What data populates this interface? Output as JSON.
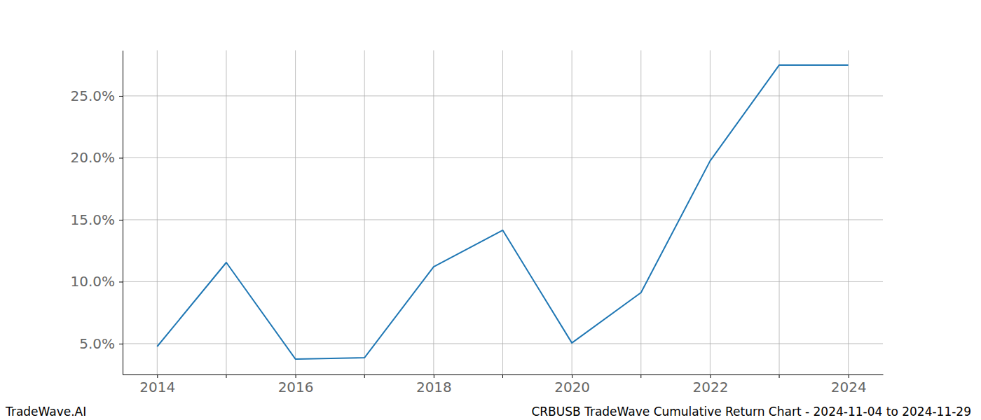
{
  "chart_data": {
    "type": "line",
    "title": "CRBUSB TradeWave Cumulative Return Chart - 2024-11-04 to 2024-11-29",
    "annotations": [
      "TradeWave.AI"
    ],
    "x": [
      2014,
      2015,
      2016,
      2017,
      2018,
      2019,
      2020,
      2021,
      2022,
      2023,
      2024
    ],
    "values": [
      4.77,
      11.55,
      3.76,
      3.87,
      11.21,
      14.15,
      5.06,
      9.12,
      19.75,
      27.49,
      27.49
    ],
    "color": "#1f77b4",
    "xlim": [
      2013.5,
      2024.5
    ],
    "xticks": [
      2014,
      2016,
      2018,
      2020,
      2022,
      2024
    ],
    "ylim": [
      2.51,
      28.67
    ],
    "yticks": [
      {
        "value": 5,
        "label": "5.0%"
      },
      {
        "value": 10,
        "label": "10.0%"
      },
      {
        "value": 15,
        "label": "15.0%"
      },
      {
        "value": 20,
        "label": "20.0%"
      },
      {
        "value": 25,
        "label": "25.0%"
      }
    ],
    "grid": true
  }
}
